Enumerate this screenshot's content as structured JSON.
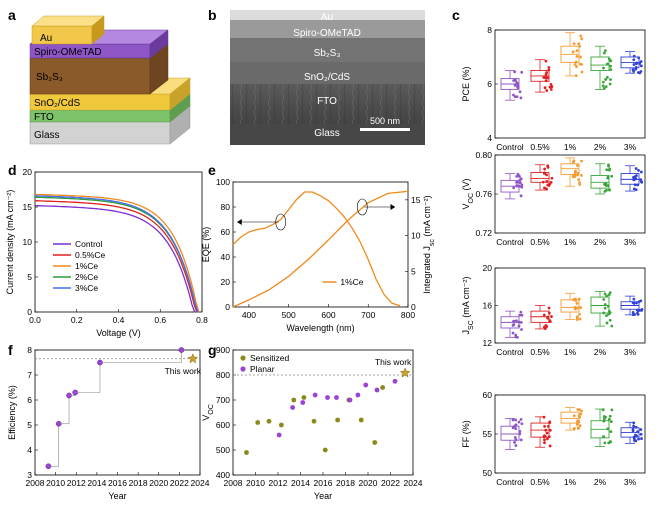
{
  "panel_labels": {
    "a": "a",
    "b": "b",
    "c": "c",
    "d": "d",
    "e": "e",
    "f": "f",
    "g": "g"
  },
  "a": {
    "layers": [
      "Au",
      "Spiro-OMeTAD",
      "Sb₂S₃",
      "SnO₂/CdS",
      "FTO",
      "Glass"
    ],
    "colors": [
      "#f3c84a",
      "#8e55c7",
      "#8b5a2b",
      "#f0c83c",
      "#7cc36a",
      "#d2d2d2"
    ]
  },
  "b": {
    "labels": [
      "Au",
      "Spiro-OMeTAD",
      "Sb₂S₃",
      "SnO₂/CdS",
      "FTO",
      "Glass"
    ],
    "scale_bar": "500 nm"
  },
  "chart_data": [
    {
      "id": "c-pce",
      "type": "box",
      "categories": [
        "Control",
        "0.5%",
        "1%",
        "2%",
        "3%"
      ],
      "ylabel": "PCE (%)",
      "ylim": [
        4,
        8
      ],
      "yticks": [
        4,
        6,
        8
      ],
      "colors": [
        "#8e55c7",
        "#e02020",
        "#f39c32",
        "#3aa53a",
        "#3040d8"
      ],
      "series": [
        {
          "q1": 5.8,
          "median": 6.0,
          "q3": 6.2,
          "min": 5.4,
          "max": 6.5,
          "mean": 6.0
        },
        {
          "q1": 6.1,
          "median": 6.3,
          "q3": 6.5,
          "min": 5.7,
          "max": 6.9,
          "mean": 6.3
        },
        {
          "q1": 6.8,
          "median": 7.1,
          "q3": 7.4,
          "min": 6.3,
          "max": 7.9,
          "mean": 7.1
        },
        {
          "q1": 6.5,
          "median": 6.7,
          "q3": 7.0,
          "min": 5.8,
          "max": 7.4,
          "mean": 6.7
        },
        {
          "q1": 6.6,
          "median": 6.8,
          "q3": 7.0,
          "min": 6.4,
          "max": 7.2,
          "mean": 6.8
        }
      ]
    },
    {
      "id": "c-voc",
      "type": "box",
      "categories": [
        "Control",
        "0.5%",
        "1%",
        "2%",
        "3%"
      ],
      "ylabel": "V_OC (V)",
      "ylim": [
        0.72,
        0.8
      ],
      "yticks": [
        0.72,
        0.76,
        0.8
      ],
      "colors": [
        "#8e55c7",
        "#e02020",
        "#f39c32",
        "#3aa53a",
        "#3040d8"
      ],
      "series": [
        {
          "q1": 0.762,
          "median": 0.768,
          "q3": 0.774,
          "min": 0.755,
          "max": 0.781,
          "mean": 0.768
        },
        {
          "q1": 0.772,
          "median": 0.776,
          "q3": 0.782,
          "min": 0.764,
          "max": 0.79,
          "mean": 0.777
        },
        {
          "q1": 0.78,
          "median": 0.786,
          "q3": 0.791,
          "min": 0.768,
          "max": 0.797,
          "mean": 0.785
        },
        {
          "q1": 0.766,
          "median": 0.772,
          "q3": 0.779,
          "min": 0.76,
          "max": 0.791,
          "mean": 0.773
        },
        {
          "q1": 0.77,
          "median": 0.775,
          "q3": 0.781,
          "min": 0.763,
          "max": 0.789,
          "mean": 0.775
        }
      ]
    },
    {
      "id": "c-jsc",
      "type": "box",
      "categories": [
        "Control",
        "0.5%",
        "1%",
        "2%",
        "3%"
      ],
      "ylabel": "J_SC (mA cm⁻²)",
      "ylim": [
        12,
        20
      ],
      "yticks": [
        12,
        16,
        20
      ],
      "colors": [
        "#8e55c7",
        "#e02020",
        "#f39c32",
        "#3aa53a",
        "#3040d8"
      ],
      "series": [
        {
          "q1": 13.6,
          "median": 14.2,
          "q3": 14.8,
          "min": 12.6,
          "max": 15.4,
          "mean": 14.2
        },
        {
          "q1": 14.2,
          "median": 14.8,
          "q3": 15.4,
          "min": 13.5,
          "max": 16.0,
          "mean": 14.8
        },
        {
          "q1": 15.3,
          "median": 15.8,
          "q3": 16.6,
          "min": 14.5,
          "max": 17.3,
          "mean": 15.9
        },
        {
          "q1": 15.2,
          "median": 16.0,
          "q3": 16.9,
          "min": 13.8,
          "max": 17.5,
          "mean": 16.0
        },
        {
          "q1": 15.6,
          "median": 16.0,
          "q3": 16.4,
          "min": 15.0,
          "max": 17.0,
          "mean": 16.0
        }
      ]
    },
    {
      "id": "c-ff",
      "type": "box",
      "categories": [
        "Control",
        "0.5%",
        "1%",
        "2%",
        "3%"
      ],
      "ylabel": "FF (%)",
      "ylim": [
        50,
        60
      ],
      "yticks": [
        50,
        55,
        60
      ],
      "colors": [
        "#8e55c7",
        "#e02020",
        "#f39c32",
        "#3aa53a",
        "#3040d8"
      ],
      "series": [
        {
          "q1": 54.2,
          "median": 55.0,
          "q3": 56.0,
          "min": 53.0,
          "max": 57.0,
          "mean": 55.0
        },
        {
          "q1": 54.6,
          "median": 55.5,
          "q3": 56.4,
          "min": 53.3,
          "max": 57.2,
          "mean": 55.5
        },
        {
          "q1": 56.4,
          "median": 57.0,
          "q3": 57.8,
          "min": 55.5,
          "max": 58.4,
          "mean": 57.0
        },
        {
          "q1": 54.5,
          "median": 55.6,
          "q3": 56.7,
          "min": 53.4,
          "max": 58.2,
          "mean": 55.6
        },
        {
          "q1": 54.6,
          "median": 55.2,
          "q3": 55.8,
          "min": 53.8,
          "max": 56.5,
          "mean": 55.2
        }
      ]
    },
    {
      "id": "d",
      "type": "line",
      "xlabel": "Voltage (V)",
      "ylabel": "Current density (mA cm⁻²)",
      "xlim": [
        0,
        0.8
      ],
      "ylim": [
        0,
        20
      ],
      "xticks": [
        0.0,
        0.2,
        0.4,
        0.6,
        0.8
      ],
      "yticks": [
        0,
        5,
        10,
        15,
        20
      ],
      "legend_position": "bottom-left",
      "series": [
        {
          "name": "Control",
          "color": "#7b2fd0",
          "jsc": 15.2,
          "voc": 0.765,
          "k": 0.14
        },
        {
          "name": "0.5%Ce",
          "color": "#e02020",
          "jsc": 15.9,
          "voc": 0.775,
          "k": 0.14
        },
        {
          "name": "1%Ce",
          "color": "#f08a1c",
          "jsc": 16.8,
          "voc": 0.785,
          "k": 0.13
        },
        {
          "name": "2%Ce",
          "color": "#2a9a3a",
          "jsc": 16.4,
          "voc": 0.78,
          "k": 0.14
        },
        {
          "name": "3%Ce",
          "color": "#4a6cf0",
          "jsc": 16.6,
          "voc": 0.78,
          "k": 0.14
        }
      ]
    },
    {
      "id": "e",
      "type": "line",
      "xlabel": "Wavelength (nm)",
      "ylabel": "EQE (%)",
      "y2label": "Integrated J_sc (mA cm⁻²)",
      "xlim": [
        360,
        800
      ],
      "ylim": [
        0,
        100
      ],
      "y2lim": [
        0,
        17.5
      ],
      "xticks": [
        400,
        500,
        600,
        700,
        800
      ],
      "yticks": [
        0,
        20,
        40,
        60,
        80,
        100
      ],
      "y2ticks": [
        0,
        5,
        10,
        15
      ],
      "legend": "1%Ce",
      "series": [
        {
          "name": "EQE",
          "color": "#f08a1c",
          "x": [
            360,
            380,
            400,
            420,
            440,
            460,
            480,
            500,
            520,
            540,
            560,
            580,
            600,
            620,
            640,
            660,
            680,
            700,
            720,
            740,
            760,
            780
          ],
          "y": [
            50,
            56,
            60,
            62,
            63,
            66,
            70,
            78,
            86,
            92,
            92,
            89,
            85,
            79,
            72,
            63,
            52,
            38,
            22,
            10,
            3,
            1
          ]
        },
        {
          "name": "Integrated J_sc",
          "color": "#f08a1c",
          "axis": "right",
          "x": [
            360,
            400,
            450,
            500,
            550,
            600,
            650,
            700,
            750,
            800
          ],
          "y": [
            0.0,
            1.0,
            2.4,
            4.3,
            6.7,
            9.4,
            12.2,
            14.6,
            15.9,
            16.2
          ]
        }
      ]
    },
    {
      "id": "f",
      "type": "scatter",
      "xlabel": "Year",
      "ylabel": "Efficiency (%)",
      "xlim": [
        2008,
        2024
      ],
      "ylim": [
        3,
        8
      ],
      "xticks": [
        2008,
        2010,
        2012,
        2014,
        2016,
        2018,
        2020,
        2022,
        2024
      ],
      "yticks": [
        3,
        4,
        5,
        6,
        7,
        8
      ],
      "reference_line": 7.65,
      "annotation": "This work",
      "points": [
        {
          "x": 2009.3,
          "y": 3.35
        },
        {
          "x": 2010.3,
          "y": 5.05
        },
        {
          "x": 2011.3,
          "y": 6.18
        },
        {
          "x": 2011.9,
          "y": 6.3
        },
        {
          "x": 2014.3,
          "y": 7.5
        },
        {
          "x": 2022.2,
          "y": 8.0
        }
      ],
      "this_work": {
        "x": 2023.3,
        "y": 7.65
      }
    },
    {
      "id": "g",
      "type": "scatter",
      "xlabel": "Year",
      "ylabel": "V_OC",
      "xlim": [
        2008,
        2024
      ],
      "ylim": [
        400,
        900
      ],
      "xticks": [
        2008,
        2010,
        2012,
        2014,
        2016,
        2018,
        2020,
        2022,
        2024
      ],
      "yticks": [
        400,
        500,
        600,
        700,
        800,
        900
      ],
      "reference_line": 800,
      "annotation": "This work",
      "series": [
        {
          "name": "Sensitized",
          "color": "#8a8a1a",
          "points": [
            [
              2009.2,
              490
            ],
            [
              2010.2,
              610
            ],
            [
              2011.2,
              615
            ],
            [
              2012.3,
              600
            ],
            [
              2013.4,
              700
            ],
            [
              2014.3,
              710
            ],
            [
              2015.2,
              615
            ],
            [
              2016.2,
              500
            ],
            [
              2017.3,
              620
            ],
            [
              2018.3,
              700
            ],
            [
              2019.4,
              620
            ],
            [
              2020.6,
              530
            ],
            [
              2021.3,
              750
            ]
          ]
        },
        {
          "name": "Planar",
          "color": "#9b40d8",
          "points": [
            [
              2012.1,
              560
            ],
            [
              2013.3,
              670
            ],
            [
              2014.2,
              690
            ],
            [
              2015.3,
              720
            ],
            [
              2016.4,
              710
            ],
            [
              2017.2,
              710
            ],
            [
              2018.4,
              700
            ],
            [
              2019.1,
              720
            ],
            [
              2019.8,
              760
            ],
            [
              2020.8,
              740
            ],
            [
              2022.4,
              775
            ]
          ]
        }
      ],
      "this_work": {
        "x": 2023.3,
        "y": 808
      }
    }
  ]
}
